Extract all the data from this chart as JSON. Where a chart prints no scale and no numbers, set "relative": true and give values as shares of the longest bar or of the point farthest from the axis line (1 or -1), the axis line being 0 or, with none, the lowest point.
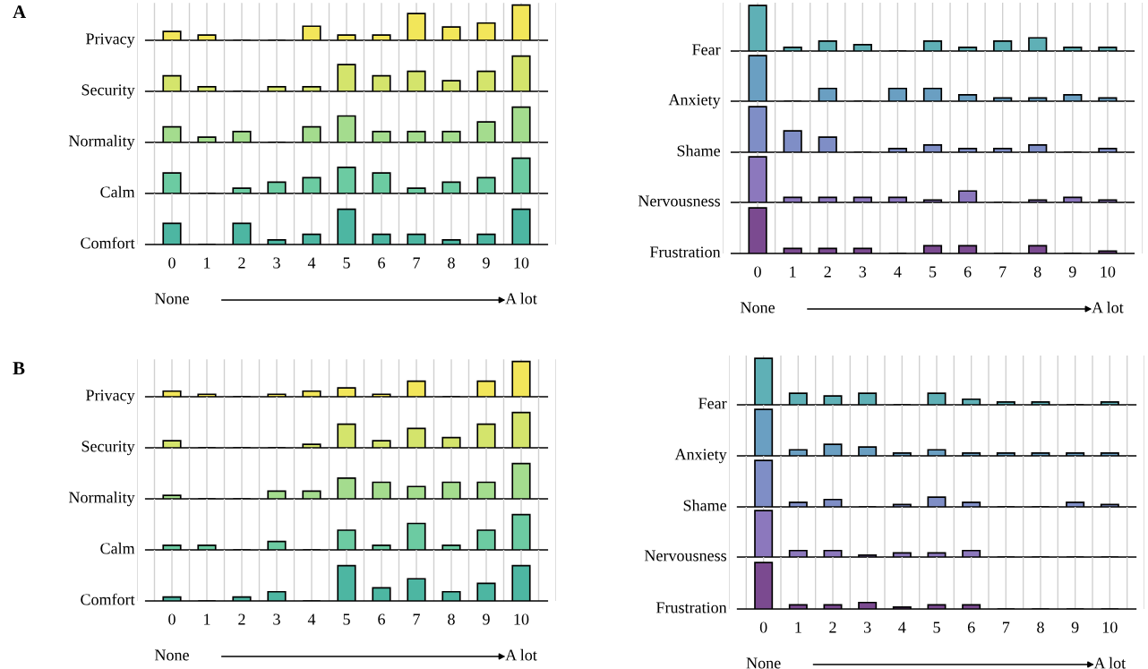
{
  "chart_data": [
    {
      "type": "bar",
      "relative": true,
      "grid": "x",
      "tick_labels": false,
      "ylabel": "Privacy",
      "color": "#f2e65a",
      "annotations": [
        "A"
      ],
      "categories": [
        "0",
        "1",
        "2",
        "3",
        "4",
        "5",
        "6",
        "7",
        "8",
        "9",
        "10"
      ],
      "values": [
        0.25,
        0.15,
        0,
        0,
        0.4,
        0.15,
        0.15,
        0.76,
        0.38,
        0.49,
        1
      ]
    },
    {
      "type": "bar",
      "relative": true,
      "grid": "x",
      "tick_labels": false,
      "ylabel": "Security",
      "color": "#d4e46c",
      "categories": [
        "0",
        "1",
        "2",
        "3",
        "4",
        "5",
        "6",
        "7",
        "8",
        "9",
        "10"
      ],
      "values": [
        0.44,
        0.13,
        0,
        0.13,
        0.13,
        0.76,
        0.44,
        0.57,
        0.3,
        0.57,
        1
      ]
    },
    {
      "type": "bar",
      "relative": true,
      "grid": "x",
      "tick_labels": false,
      "ylabel": "Normality",
      "color": "#a4dc8e",
      "categories": [
        "0",
        "1",
        "2",
        "3",
        "4",
        "5",
        "6",
        "7",
        "8",
        "9",
        "10"
      ],
      "values": [
        0.44,
        0.15,
        0.31,
        0,
        0.44,
        0.75,
        0.31,
        0.31,
        0.31,
        0.58,
        1
      ]
    },
    {
      "type": "bar",
      "relative": true,
      "grid": "x",
      "tick_labels": false,
      "ylabel": "Calm",
      "color": "#6ccba2",
      "categories": [
        "0",
        "1",
        "2",
        "3",
        "4",
        "5",
        "6",
        "7",
        "8",
        "9",
        "10"
      ],
      "values": [
        0.58,
        0,
        0.15,
        0.32,
        0.45,
        0.74,
        0.58,
        0.15,
        0.32,
        0.45,
        1
      ]
    },
    {
      "type": "bar",
      "relative": true,
      "grid": "x",
      "ylabel": "Comfort",
      "color": "#4db6a2",
      "annotations": [
        "None",
        "A lot"
      ],
      "categories": [
        "0",
        "1",
        "2",
        "3",
        "4",
        "5",
        "6",
        "7",
        "8",
        "9",
        "10"
      ],
      "values": [
        0.6,
        0,
        0.6,
        0.13,
        0.29,
        1,
        0.29,
        0.29,
        0.13,
        0.29,
        1
      ]
    },
    {
      "type": "bar",
      "relative": true,
      "grid": "x",
      "tick_labels": false,
      "ylabel": "Fear",
      "color": "#5fb0b6",
      "categories": [
        "0",
        "1",
        "2",
        "3",
        "4",
        "5",
        "6",
        "7",
        "8",
        "9",
        "10"
      ],
      "values": [
        1,
        0.08,
        0.22,
        0.14,
        0,
        0.22,
        0.08,
        0.22,
        0.29,
        0.08,
        0.08
      ]
    },
    {
      "type": "bar",
      "relative": true,
      "grid": "x",
      "tick_labels": false,
      "ylabel": "Anxiety",
      "color": "#6a9fc2",
      "categories": [
        "0",
        "1",
        "2",
        "3",
        "4",
        "5",
        "6",
        "7",
        "8",
        "9",
        "10"
      ],
      "values": [
        1,
        0,
        0.28,
        0,
        0.28,
        0.28,
        0.14,
        0.07,
        0.07,
        0.14,
        0.07
      ]
    },
    {
      "type": "bar",
      "relative": true,
      "grid": "x",
      "tick_labels": false,
      "ylabel": "Shame",
      "color": "#7f8ec6",
      "categories": [
        "0",
        "1",
        "2",
        "3",
        "4",
        "5",
        "6",
        "7",
        "8",
        "9",
        "10"
      ],
      "values": [
        1,
        0.47,
        0.33,
        0,
        0.08,
        0.16,
        0.08,
        0.08,
        0.16,
        0,
        0.08
      ]
    },
    {
      "type": "bar",
      "relative": true,
      "grid": "x",
      "tick_labels": false,
      "ylabel": "Nervousness",
      "color": "#8c78bd",
      "categories": [
        "0",
        "1",
        "2",
        "3",
        "4",
        "5",
        "6",
        "7",
        "8",
        "9",
        "10"
      ],
      "values": [
        1,
        0.11,
        0.11,
        0.11,
        0.11,
        0.05,
        0.25,
        0,
        0.05,
        0.11,
        0.05
      ]
    },
    {
      "type": "bar",
      "relative": true,
      "grid": "x",
      "ylabel": "Frustration",
      "color": "#7b4a90",
      "annotations": [
        "None",
        "A lot"
      ],
      "categories": [
        "0",
        "1",
        "2",
        "3",
        "4",
        "5",
        "6",
        "7",
        "8",
        "9",
        "10"
      ],
      "values": [
        1,
        0.11,
        0.11,
        0.11,
        0,
        0.17,
        0.17,
        0,
        0.17,
        0,
        0.05
      ]
    },
    {
      "type": "bar",
      "relative": true,
      "grid": "x",
      "tick_labels": false,
      "ylabel": "Privacy",
      "color": "#f2e65a",
      "annotations": [
        "B"
      ],
      "categories": [
        "0",
        "1",
        "2",
        "3",
        "4",
        "5",
        "6",
        "7",
        "8",
        "9",
        "10"
      ],
      "values": [
        0.16,
        0.07,
        0,
        0.07,
        0.16,
        0.25,
        0.07,
        0.44,
        0,
        0.44,
        1
      ]
    },
    {
      "type": "bar",
      "relative": true,
      "grid": "x",
      "tick_labels": false,
      "ylabel": "Security",
      "color": "#d4e46c",
      "categories": [
        "0",
        "1",
        "2",
        "3",
        "4",
        "5",
        "6",
        "7",
        "8",
        "9",
        "10"
      ],
      "values": [
        0.2,
        0,
        0,
        0,
        0.1,
        0.67,
        0.2,
        0.55,
        0.29,
        0.67,
        1
      ]
    },
    {
      "type": "bar",
      "relative": true,
      "grid": "x",
      "tick_labels": false,
      "ylabel": "Normality",
      "color": "#a4dc8e",
      "categories": [
        "0",
        "1",
        "2",
        "3",
        "4",
        "5",
        "6",
        "7",
        "8",
        "9",
        "10"
      ],
      "values": [
        0.1,
        0,
        0,
        0.22,
        0.22,
        0.59,
        0.47,
        0.35,
        0.47,
        0.47,
        1
      ]
    },
    {
      "type": "bar",
      "relative": true,
      "grid": "x",
      "tick_labels": false,
      "ylabel": "Calm",
      "color": "#6ccba2",
      "categories": [
        "0",
        "1",
        "2",
        "3",
        "4",
        "5",
        "6",
        "7",
        "8",
        "9",
        "10"
      ],
      "values": [
        0.13,
        0.13,
        0,
        0.24,
        0,
        0.56,
        0.13,
        0.75,
        0.13,
        0.56,
        1
      ]
    },
    {
      "type": "bar",
      "relative": true,
      "grid": "x",
      "ylabel": "Comfort",
      "color": "#4db6a2",
      "annotations": [
        "None",
        "A lot"
      ],
      "categories": [
        "0",
        "1",
        "2",
        "3",
        "4",
        "5",
        "6",
        "7",
        "8",
        "9",
        "10"
      ],
      "values": [
        0.11,
        0,
        0.11,
        0.26,
        0,
        1,
        0.37,
        0.63,
        0.26,
        0.5,
        1
      ]
    },
    {
      "type": "bar",
      "relative": true,
      "grid": "x",
      "tick_labels": false,
      "ylabel": "Fear",
      "color": "#5fb0b6",
      "categories": [
        "0",
        "1",
        "2",
        "3",
        "4",
        "5",
        "6",
        "7",
        "8",
        "9",
        "10"
      ],
      "values": [
        1,
        0.25,
        0.19,
        0.25,
        0,
        0.25,
        0.12,
        0.06,
        0.06,
        0,
        0.06
      ]
    },
    {
      "type": "bar",
      "relative": true,
      "grid": "x",
      "tick_labels": false,
      "ylabel": "Anxiety",
      "color": "#6a9fc2",
      "categories": [
        "0",
        "1",
        "2",
        "3",
        "4",
        "5",
        "6",
        "7",
        "8",
        "9",
        "10"
      ],
      "values": [
        1,
        0.13,
        0.25,
        0.19,
        0.06,
        0.13,
        0.06,
        0.06,
        0.06,
        0.06,
        0.06
      ]
    },
    {
      "type": "bar",
      "relative": true,
      "grid": "x",
      "tick_labels": false,
      "ylabel": "Shame",
      "color": "#7f8ec6",
      "categories": [
        "0",
        "1",
        "2",
        "3",
        "4",
        "5",
        "6",
        "7",
        "8",
        "9",
        "10"
      ],
      "values": [
        1,
        0.1,
        0.16,
        0,
        0.05,
        0.21,
        0.1,
        0,
        0,
        0.1,
        0.05
      ]
    },
    {
      "type": "bar",
      "relative": true,
      "grid": "x",
      "tick_labels": false,
      "ylabel": "Nervousness",
      "color": "#8c78bd",
      "categories": [
        "0",
        "1",
        "2",
        "3",
        "4",
        "5",
        "6",
        "7",
        "8",
        "9",
        "10"
      ],
      "values": [
        1,
        0.14,
        0.14,
        0.04,
        0.09,
        0.09,
        0.14,
        0,
        0,
        0,
        0
      ]
    },
    {
      "type": "bar",
      "relative": true,
      "grid": "x",
      "ylabel": "Frustration",
      "color": "#7b4a90",
      "annotations": [
        "None",
        "A lot"
      ],
      "categories": [
        "0",
        "1",
        "2",
        "3",
        "4",
        "5",
        "6",
        "7",
        "8",
        "9",
        "10"
      ],
      "values": [
        1,
        0.09,
        0.09,
        0.14,
        0.04,
        0.09,
        0.09,
        0,
        0,
        0,
        0
      ]
    }
  ]
}
